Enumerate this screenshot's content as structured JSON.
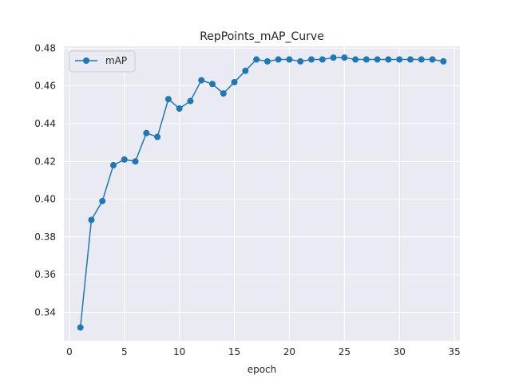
{
  "chart_data": {
    "type": "line",
    "title": "RepPoints_mAP_Curve",
    "xlabel": "epoch",
    "ylabel": "",
    "xlim": [
      -0.5,
      35.5
    ],
    "ylim": [
      0.325,
      0.481
    ],
    "xticks": [
      0,
      5,
      10,
      15,
      20,
      25,
      30,
      35
    ],
    "yticks": [
      0.34,
      0.36,
      0.38,
      0.4,
      0.42,
      0.44,
      0.46,
      0.48
    ],
    "ytick_labels": [
      "0.34",
      "0.36",
      "0.38",
      "0.40",
      "0.42",
      "0.44",
      "0.46",
      "0.48"
    ],
    "grid": true,
    "legend_position": "upper-left",
    "background_color": "#eaeaf2",
    "series": [
      {
        "name": "mAP",
        "color": "#1f77b4",
        "marker": "circle",
        "x": [
          1,
          2,
          3,
          4,
          5,
          6,
          7,
          8,
          9,
          10,
          11,
          12,
          13,
          14,
          15,
          16,
          17,
          18,
          19,
          20,
          21,
          22,
          23,
          24,
          25,
          26,
          27,
          28,
          29,
          30,
          31,
          32,
          33,
          34
        ],
        "y": [
          0.332,
          0.389,
          0.399,
          0.418,
          0.421,
          0.42,
          0.435,
          0.433,
          0.453,
          0.448,
          0.452,
          0.463,
          0.461,
          0.456,
          0.462,
          0.468,
          0.474,
          0.473,
          0.474,
          0.474,
          0.473,
          0.474,
          0.474,
          0.475,
          0.475,
          0.474,
          0.474,
          0.474,
          0.474,
          0.474,
          0.474,
          0.474,
          0.474,
          0.473
        ]
      }
    ]
  }
}
